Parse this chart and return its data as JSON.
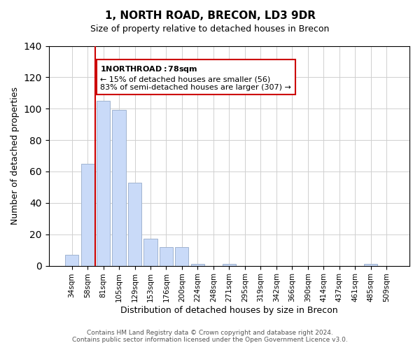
{
  "title": "1, NORTH ROAD, BRECON, LD3 9DR",
  "subtitle": "Size of property relative to detached houses in Brecon",
  "xlabel": "Distribution of detached houses by size in Brecon",
  "ylabel": "Number of detached properties",
  "bar_labels": [
    "34sqm",
    "58sqm",
    "81sqm",
    "105sqm",
    "129sqm",
    "153sqm",
    "176sqm",
    "200sqm",
    "224sqm",
    "248sqm",
    "271sqm",
    "295sqm",
    "319sqm",
    "342sqm",
    "366sqm",
    "390sqm",
    "414sqm",
    "437sqm",
    "461sqm",
    "485sqm",
    "509sqm"
  ],
  "bar_values": [
    7,
    65,
    105,
    99,
    53,
    17,
    12,
    12,
    1,
    0,
    1,
    0,
    0,
    0,
    0,
    0,
    0,
    0,
    0,
    1,
    0
  ],
  "bar_color": "#c9daf8",
  "bar_edge_color": "#a0b4d0",
  "vline_x": 1,
  "vline_color": "#cc0000",
  "ylim": [
    0,
    140
  ],
  "yticks": [
    0,
    20,
    40,
    60,
    80,
    100,
    120,
    140
  ],
  "annotation_title": "1 NORTH ROAD: 78sqm",
  "annotation_line1": "← 15% of detached houses are smaller (56)",
  "annotation_line2": "83% of semi-detached houses are larger (307) →",
  "annotation_box_color": "#ffffff",
  "annotation_box_edge": "#cc0000",
  "footer_line1": "Contains HM Land Registry data © Crown copyright and database right 2024.",
  "footer_line2": "Contains public sector information licensed under the Open Government Licence v3.0.",
  "background_color": "#ffffff",
  "grid_color": "#d0d0d0"
}
